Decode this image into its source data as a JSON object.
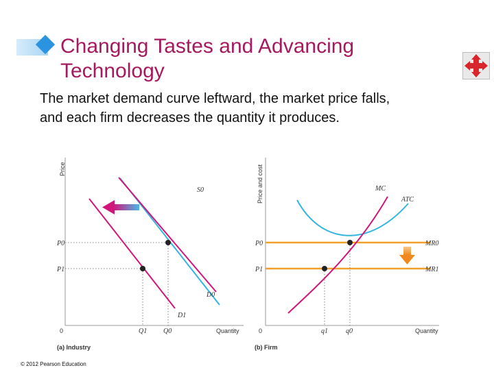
{
  "slide": {
    "title_line1": "Changing Tastes and Advancing",
    "title_line2": "Technology",
    "body_line1": "The market demand curve leftward, the market price falls,",
    "body_line2": "and each firm decreases the quantity it produces.",
    "copyright": "© 2012 Pearson Education",
    "nav_icon": "four-way-arrows-icon"
  },
  "colors": {
    "title": "#a6195f",
    "demand": "#d0157b",
    "supply_cost": "#33b5e0",
    "marginal_revenue": "#f0a028",
    "mr_shift_arrow": "#f08a20"
  },
  "industry": {
    "y_axis_label": "Price",
    "x_axis_label": "Quantity",
    "origin": "0",
    "caption": "(a) Industry",
    "curves": {
      "supply": "S0",
      "demand_initial": "D0",
      "demand_new": "D1"
    },
    "price_labels": [
      "P0",
      "P1"
    ],
    "quantity_labels": [
      "Q1",
      "Q0"
    ]
  },
  "firm": {
    "y_axis_label": "Price and cost",
    "x_axis_label": "Quantity",
    "origin": "0",
    "caption": "(b) Firm",
    "curves": {
      "mc": "MC",
      "atc": "ATC",
      "mr_initial": "MR0",
      "mr_new": "MR1"
    },
    "price_labels": [
      "P0",
      "P1"
    ],
    "quantity_labels": [
      "q1",
      "q0"
    ]
  }
}
